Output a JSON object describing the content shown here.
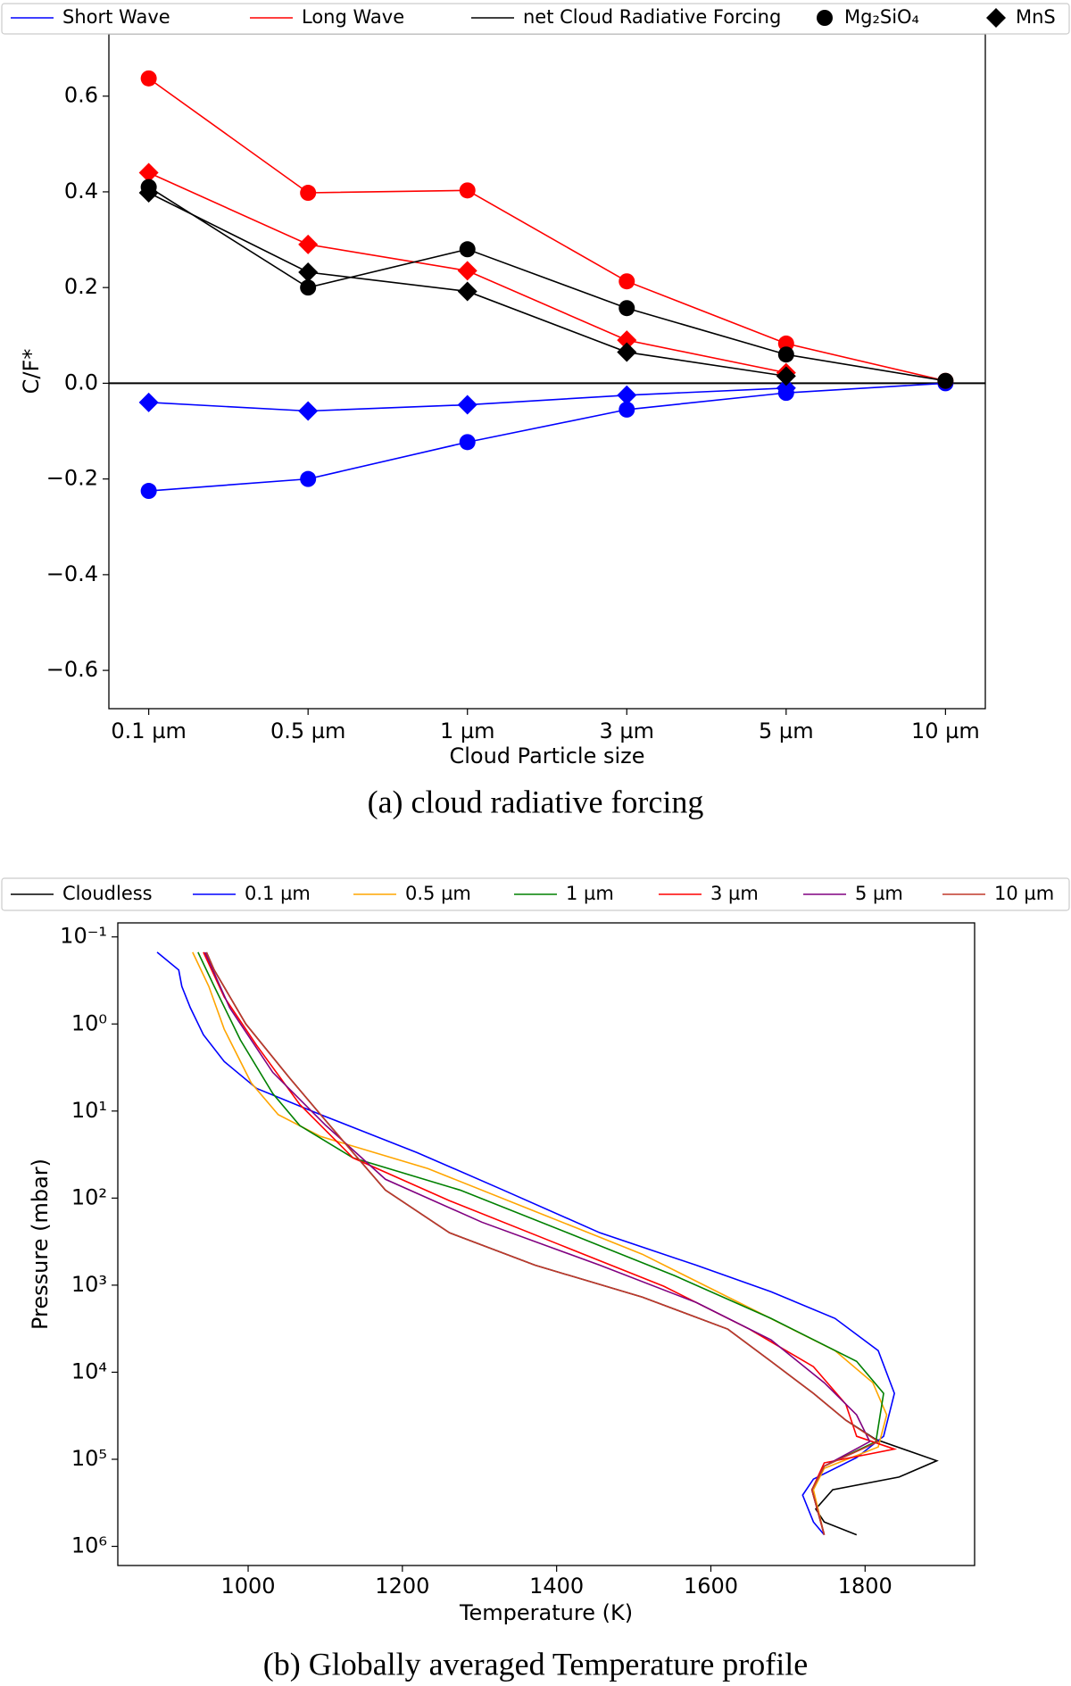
{
  "chart_data": [
    {
      "type": "line",
      "caption": "(a) cloud radiative forcing",
      "xlabel": "Cloud Particle size",
      "ylabel": "C/F*",
      "categories": [
        "0.1 µm",
        "0.5 µm",
        "1 µm",
        "3 µm",
        "5 µm",
        "10 µm"
      ],
      "markers": [
        {
          "name": "Mg₂SiO₄",
          "shape": "circle"
        },
        {
          "name": "MnS",
          "shape": "diamond"
        }
      ],
      "series": [
        {
          "name": "Short Wave",
          "color": "#0000ff",
          "values": [
            [
              -0.225,
              -0.2,
              -0.123,
              -0.055,
              -0.02,
              0.0
            ],
            [
              -0.04,
              -0.058,
              -0.045,
              -0.025,
              -0.01,
              null
            ]
          ]
        },
        {
          "name": "Long Wave",
          "color": "#ff0000",
          "values": [
            [
              0.637,
              0.398,
              0.403,
              0.213,
              0.083,
              0.005
            ],
            [
              0.44,
              0.29,
              0.235,
              0.09,
              0.022,
              null
            ]
          ]
        },
        {
          "name": "net Cloud Radiative Forcing",
          "color": "#000000",
          "values": [
            [
              0.41,
              0.2,
              0.28,
              0.157,
              0.06,
              0.005
            ],
            [
              0.398,
              0.232,
              0.192,
              0.065,
              0.015,
              null
            ]
          ]
        }
      ],
      "ylim": [
        -0.68,
        0.73
      ],
      "yticks": [
        {
          "value": -0.6,
          "label": "−0.6"
        },
        {
          "value": -0.4,
          "label": "−0.4"
        },
        {
          "value": -0.2,
          "label": "−0.2"
        },
        {
          "value": 0.0,
          "label": "0.0"
        },
        0.2,
        0.4,
        0.6
      ],
      "hline": 0
    },
    {
      "type": "line",
      "caption": "(b) Globally averaged Temperature profile",
      "xlabel": "Temperature (K)",
      "ylabel": "Pressure (mbar)",
      "yscale": "log",
      "series": [
        {
          "name": "Cloudless",
          "color": "#000000",
          "x": [
            946,
            956,
            997,
            1053,
            1094,
            1136,
            1178,
            1261,
            1372,
            1511,
            1622,
            1678,
            1733,
            1775,
            1814,
            1893,
            1844,
            1758,
            1736,
            1747,
            1789
          ],
          "values": [
            0.15,
            0.24,
            1,
            4.1,
            11,
            30,
            81,
            250,
            590,
            1370,
            3200,
            7500,
            17500,
            35600,
            59200,
            104000,
            160000,
            224000,
            373000,
            525000,
            737000
          ]
        },
        {
          "name": "0.1 µm",
          "color": "#0000ff",
          "x": [
            882,
            910,
            914,
            925,
            942,
            969,
            1011,
            1094,
            1219,
            1331,
            1456,
            1581,
            1678,
            1761,
            1817,
            1838,
            1824,
            1789,
            1733,
            1719,
            1733,
            1747
          ],
          "values": [
            0.15,
            0.24,
            0.37,
            0.65,
            1.33,
            2.7,
            5.5,
            11,
            30,
            81,
            250,
            590,
            1190,
            2410,
            5650,
            17500,
            54400,
            95600,
            169000,
            258000,
            525000,
            737000
          ]
        },
        {
          "name": "0.5 µm",
          "color": "#ffa500",
          "x": [
            928,
            949,
            969,
            1004,
            1039,
            1094,
            1233,
            1372,
            1511,
            1650,
            1761,
            1810,
            1828,
            1817,
            1747,
            1733,
            1747
          ],
          "values": [
            0.15,
            0.37,
            1.15,
            4.75,
            11,
            19.6,
            45.8,
            142,
            441,
            1820,
            5650,
            13200,
            30900,
            72200,
            127000,
            224000,
            737000
          ]
        },
        {
          "name": "1 µm",
          "color": "#008000",
          "x": [
            935,
            956,
            990,
            1032,
            1067,
            1136,
            1275,
            1414,
            1553,
            1678,
            1789,
            1824,
            1814,
            1747,
            1731,
            1747
          ],
          "values": [
            0.15,
            0.37,
            1.53,
            6.3,
            14.7,
            34.5,
            81,
            250,
            778,
            2410,
            7500,
            17500,
            62700,
            120000,
            224000,
            737000
          ]
        },
        {
          "name": "3 µm",
          "color": "#ff0000",
          "x": [
            942,
            969,
            1011,
            1067,
            1136,
            1261,
            1400,
            1539,
            1650,
            1733,
            1775,
            1789,
            1838,
            1747,
            1731,
            1747
          ],
          "values": [
            0.15,
            0.49,
            1.76,
            8.4,
            34.5,
            107,
            332,
            1030,
            3200,
            8630,
            23300,
            54400,
            76400,
            110000,
            224000,
            737000
          ]
        },
        {
          "name": "5 µm",
          "color": "#800080",
          "x": [
            944,
            976,
            1032,
            1101,
            1178,
            1303,
            1456,
            1581,
            1678,
            1747,
            1789,
            1806,
            1747,
            1731,
            1747
          ],
          "values": [
            0.15,
            0.65,
            3.6,
            14.7,
            60.8,
            189,
            590,
            1580,
            4250,
            13200,
            30900,
            62700,
            120000,
            224000,
            737000
          ]
        },
        {
          "name": "10 µm",
          "color": "#c0392b",
          "x": [
            946,
            956,
            997,
            1053,
            1094,
            1136,
            1178,
            1261,
            1372,
            1511,
            1622,
            1678,
            1733,
            1775,
            1817,
            1747,
            1731,
            1747
          ],
          "values": [
            0.15,
            0.24,
            1,
            4.1,
            11,
            30,
            81,
            250,
            590,
            1370,
            3200,
            7500,
            17500,
            35600,
            62700,
            120000,
            224000,
            737000
          ]
        }
      ],
      "xlim": [
        831,
        1942
      ],
      "xticks": [
        1000,
        1200,
        1400,
        1600,
        1800
      ],
      "ylim": [
        1660000,
        0.069
      ],
      "yticks": [
        {
          "value": 0.1,
          "label": "10⁻¹"
        },
        {
          "value": 1,
          "label": "10⁰"
        },
        {
          "value": 10,
          "label": "10¹"
        },
        {
          "value": 100,
          "label": "10²"
        },
        {
          "value": 1000,
          "label": "10³"
        },
        {
          "value": 10000,
          "label": "10⁴"
        },
        {
          "value": 100000,
          "label": "10⁵"
        },
        {
          "value": 1000000,
          "label": "10⁶"
        }
      ]
    }
  ]
}
